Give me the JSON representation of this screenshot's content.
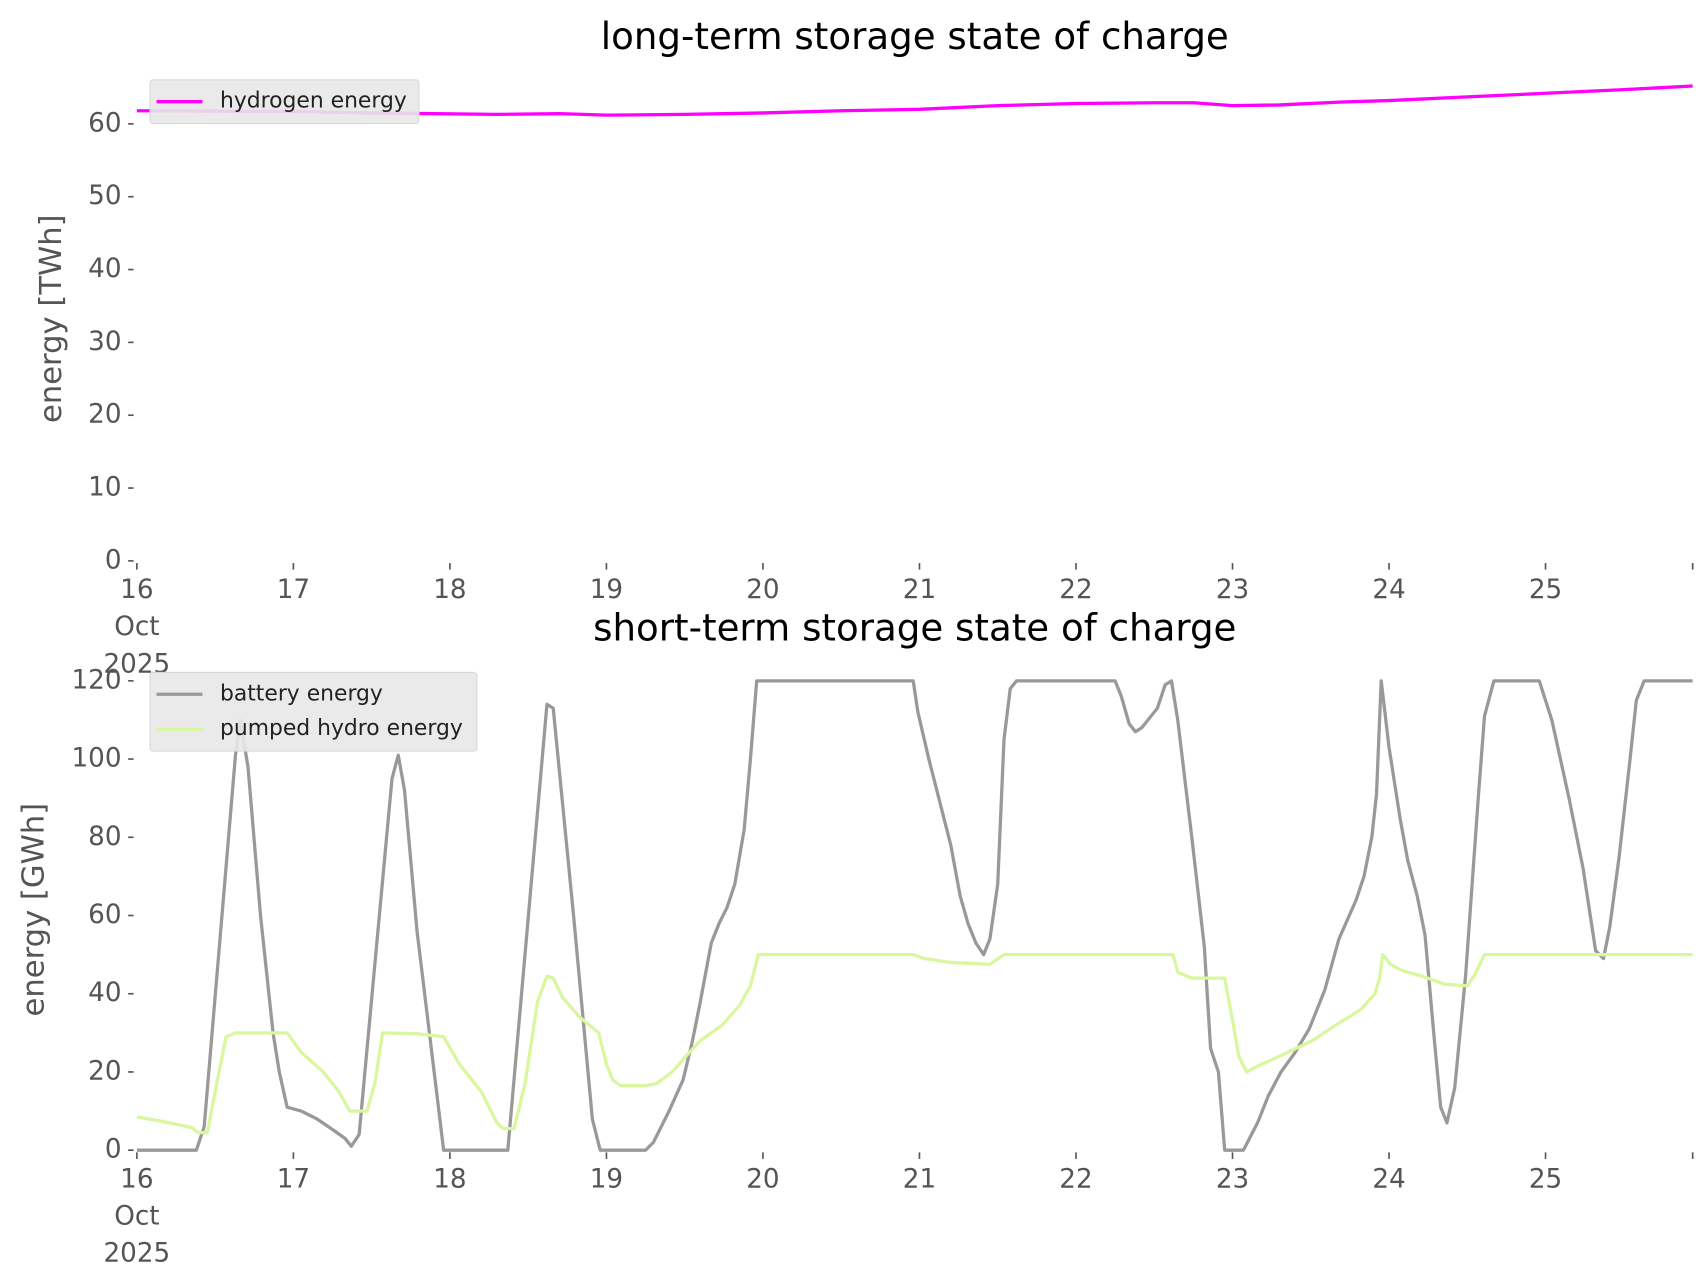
{
  "chart_data": [
    {
      "type": "line",
      "title": "long-term storage state of charge",
      "ylabel": "energy [TWh]",
      "legend": "upper left",
      "xlim": [
        16,
        25.94
      ],
      "xticks": [
        {
          "value": 16,
          "label": "16\nOct\n2025"
        },
        17,
        18,
        19,
        20,
        21,
        22,
        23,
        24,
        25
      ],
      "ylim": [
        0,
        66.5
      ],
      "yticks": [
        0,
        10,
        20,
        30,
        40,
        50,
        60
      ],
      "series": [
        {
          "name": "hydrogen energy",
          "color": "#ff00ff",
          "x": [
            16,
            17,
            17.5,
            18.3,
            18.7,
            19,
            19.5,
            20,
            20.5,
            21,
            21.5,
            22,
            22.5,
            22.75,
            23,
            23.3,
            23.7,
            24,
            24.5,
            25,
            25.5,
            25.94
          ],
          "values": [
            61.8,
            61.7,
            61.5,
            61.3,
            61.4,
            61.2,
            61.3,
            61.5,
            61.8,
            62.0,
            62.5,
            62.8,
            62.9,
            62.9,
            62.5,
            62.6,
            63.0,
            63.2,
            63.7,
            64.2,
            64.7,
            65.2
          ]
        }
      ]
    },
    {
      "type": "line",
      "title": "short-term storage state of charge",
      "ylabel": "energy [GWh]",
      "legend": "upper left",
      "xlim": [
        16,
        25.94
      ],
      "xticks": [
        {
          "value": 16,
          "label": "16\nOct\n2025"
        },
        17,
        18,
        19,
        20,
        21,
        22,
        23,
        24,
        25
      ],
      "ylim": [
        0,
        123
      ],
      "yticks": [
        0,
        20,
        40,
        60,
        80,
        100,
        120
      ],
      "series": [
        {
          "name": "battery energy",
          "color": "#999999",
          "x": [
            16,
            16.38,
            16.43,
            16.63,
            16.66,
            16.71,
            16.79,
            16.87,
            16.91,
            16.96,
            17.05,
            17.15,
            17.26,
            17.33,
            17.37,
            17.42,
            17.63,
            17.67,
            17.71,
            17.79,
            17.96,
            18.37,
            18.62,
            18.66,
            18.79,
            18.91,
            18.96,
            19.25,
            19.3,
            19.4,
            19.49,
            19.55,
            19.6,
            19.67,
            19.72,
            19.77,
            19.82,
            19.88,
            19.92,
            19.96,
            20.96,
            20.99,
            21.06,
            21.2,
            21.26,
            21.31,
            21.36,
            21.41,
            21.45,
            21.5,
            21.54,
            21.58,
            21.62,
            22.25,
            22.29,
            22.34,
            22.38,
            22.42,
            22.52,
            22.57,
            22.61,
            22.65,
            22.74,
            22.82,
            22.86,
            22.91,
            22.95,
            23.07,
            23.16,
            23.23,
            23.31,
            23.4,
            23.49,
            23.59,
            23.68,
            23.79,
            23.84,
            23.89,
            23.92,
            23.95,
            24.0,
            24.07,
            24.12,
            24.18,
            24.23,
            24.29,
            24.33,
            24.37,
            24.42,
            24.49,
            24.57,
            24.61,
            24.67,
            24.96,
            25.04,
            25.15,
            25.24,
            25.32,
            25.37,
            25.41,
            25.47,
            25.54,
            25.58,
            25.63,
            25.94
          ],
          "values": [
            0,
            0,
            6,
            101,
            110,
            98,
            60,
            30,
            20,
            11,
            10,
            8,
            5,
            3,
            1,
            4,
            95,
            101,
            92,
            56,
            0,
            0,
            114,
            113,
            60,
            8,
            0,
            0,
            2,
            10,
            18,
            28,
            38,
            53,
            58,
            62,
            68,
            82,
            100,
            120,
            120,
            112,
            100,
            78,
            65,
            58,
            53,
            50,
            54,
            68,
            105,
            118,
            120,
            120,
            116,
            109,
            107,
            108,
            113,
            119,
            120,
            110,
            80,
            52,
            26,
            20,
            0,
            0,
            7,
            14,
            20,
            25,
            31,
            41,
            54,
            64,
            70,
            80,
            91,
            120,
            103,
            85,
            74,
            65,
            55,
            28,
            11,
            7,
            16,
            45,
            90,
            111,
            120,
            120,
            110,
            90,
            72,
            51,
            49,
            57,
            75,
            100,
            115,
            120,
            120
          ]
        },
        {
          "name": "pumped hydro energy",
          "color": "#d8f79e",
          "x": [
            16,
            16.17,
            16.35,
            16.39,
            16.45,
            16.51,
            16.57,
            16.63,
            16.96,
            17.05,
            17.19,
            17.29,
            17.36,
            17.47,
            17.52,
            17.57,
            17.78,
            17.96,
            18.06,
            18.2,
            18.3,
            18.34,
            18.41,
            18.48,
            18.56,
            18.62,
            18.66,
            18.72,
            18.83,
            18.95,
            19.0,
            19.04,
            19.09,
            19.25,
            19.32,
            19.42,
            19.53,
            19.6,
            19.74,
            19.85,
            19.92,
            19.97,
            20.96,
            21.03,
            21.2,
            21.45,
            21.54,
            22.62,
            22.65,
            22.74,
            22.95,
            23.01,
            23.04,
            23.09,
            23.16,
            23.3,
            23.51,
            23.68,
            23.82,
            23.91,
            23.94,
            23.96,
            24.01,
            24.08,
            24.21,
            24.35,
            24.5,
            24.55,
            24.61,
            25.94
          ],
          "values": [
            8.5,
            7.3,
            5.8,
            4.5,
            4.5,
            17,
            29,
            30,
            30,
            25,
            20,
            15,
            10,
            10,
            17,
            30,
            29.8,
            29,
            22,
            15,
            7,
            5.5,
            5.5,
            17,
            38,
            44.5,
            44,
            39,
            34,
            30,
            22,
            18,
            16.5,
            16.5,
            17,
            20,
            25,
            28,
            32,
            37,
            42,
            50,
            50,
            49,
            48,
            47.5,
            50,
            50,
            45.5,
            44,
            44,
            31,
            24,
            20,
            21.5,
            24,
            28,
            32.5,
            36,
            40,
            44,
            50,
            47.5,
            46,
            44.5,
            42.5,
            42,
            45,
            50,
            50
          ]
        }
      ]
    }
  ]
}
